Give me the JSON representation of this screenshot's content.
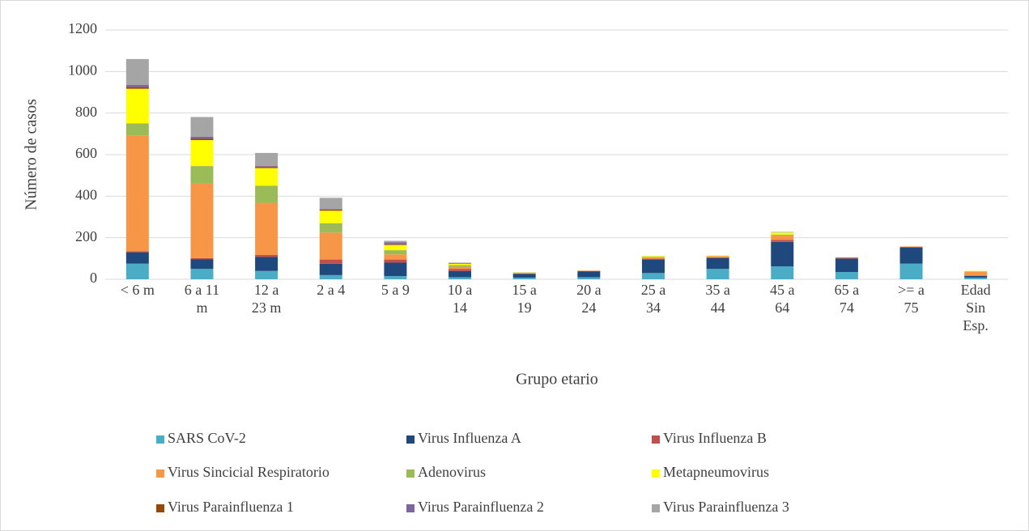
{
  "chart_data": {
    "type": "stacked_bar",
    "xlabel": "Grupo etario",
    "ylabel": "Número de casos",
    "categories": [
      "< 6 m",
      "6 a 11 m",
      "12 a 23 m",
      "2 a 4",
      "5 a 9",
      "10 a 14",
      "15 a 19",
      "20 a 24",
      "25 a 34",
      "35 a 44",
      "45 a 64",
      "65 a 74",
      ">= a 75",
      "Edad Sin Esp."
    ],
    "ylim": [
      0,
      1200
    ],
    "yticks": [
      0,
      200,
      400,
      600,
      800,
      1000,
      1200
    ],
    "grid": true,
    "legend": "bottom",
    "series": [
      {
        "name": "SARS CoV-2",
        "color": "#4bacc6",
        "values": [
          75,
          50,
          40,
          20,
          15,
          10,
          8,
          10,
          30,
          50,
          62,
          35,
          75,
          8
        ]
      },
      {
        "name": "Virus Influenza A",
        "color": "#1f497d",
        "values": [
          55,
          47,
          67,
          55,
          65,
          30,
          18,
          27,
          65,
          52,
          118,
          65,
          78,
          8
        ]
      },
      {
        "name": "Virus Influenza B",
        "color": "#c0504d",
        "values": [
          5,
          5,
          10,
          20,
          15,
          10,
          2,
          3,
          4,
          4,
          10,
          3,
          3,
          2
        ]
      },
      {
        "name": "Virus Sincicial Respiratorio",
        "color": "#f79646",
        "values": [
          558,
          358,
          251,
          130,
          25,
          10,
          2,
          2,
          6,
          6,
          20,
          3,
          2,
          20
        ]
      },
      {
        "name": "Adenovirus",
        "color": "#9bbb59",
        "values": [
          57,
          85,
          82,
          45,
          20,
          8,
          2,
          0,
          2,
          0,
          5,
          0,
          0,
          0
        ]
      },
      {
        "name": "Metapneumovirus",
        "color": "#ffff00",
        "values": [
          167,
          125,
          85,
          60,
          25,
          7,
          1,
          0,
          4,
          3,
          10,
          0,
          0,
          2
        ]
      },
      {
        "name": "Virus Parainfluenza 1",
        "color": "#974706",
        "values": [
          8,
          6,
          6,
          5,
          3,
          1,
          0,
          0,
          0,
          0,
          0,
          0,
          0,
          0
        ]
      },
      {
        "name": "Virus Parainfluenza 2",
        "color": "#8064a2",
        "values": [
          10,
          10,
          4,
          3,
          10,
          2,
          0,
          0,
          0,
          0,
          0,
          0,
          0,
          0
        ]
      },
      {
        "name": "Virus Parainfluenza 3",
        "color": "#a5a5a5",
        "values": [
          125,
          95,
          63,
          54,
          7,
          2,
          1,
          0,
          1,
          0,
          3,
          0,
          0,
          0
        ]
      }
    ]
  }
}
